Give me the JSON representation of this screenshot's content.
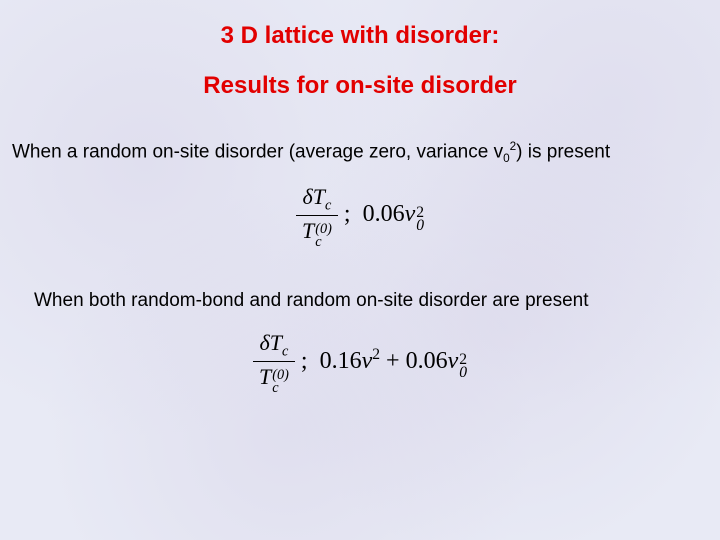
{
  "title": {
    "line1": "3 D lattice with disorder:",
    "line2": "Results for on-site disorder"
  },
  "body": {
    "line1_pre": "When a random on-site disorder (average zero, variance v",
    "line1_sub": "0",
    "line1_sup": "2",
    "line1_post": ") is present",
    "line2": "When both random-bond and random on-site disorder are present"
  },
  "formula1": {
    "numerator_delta": "δT",
    "numerator_sub": "c",
    "denominator_T": "T",
    "denominator_sub": "c",
    "denominator_sup": "(0)",
    "sep": ";",
    "coef": "0.06",
    "var": "v",
    "var_sub": "0",
    "var_sup": "2"
  },
  "formula2": {
    "numerator_delta": "δT",
    "numerator_sub": "c",
    "denominator_T": "T",
    "denominator_sub": "c",
    "denominator_sup": "(0)",
    "sep": ";",
    "term1_coef": "0.16",
    "term1_var": "v",
    "term1_sup": "2",
    "plus": "+",
    "term2_coef": "0.06",
    "term2_var": "v",
    "term2_sub": "0",
    "term2_sup": "2"
  },
  "colors": {
    "title": "#e20000",
    "body": "#000000",
    "background": "#e8eaf5"
  }
}
